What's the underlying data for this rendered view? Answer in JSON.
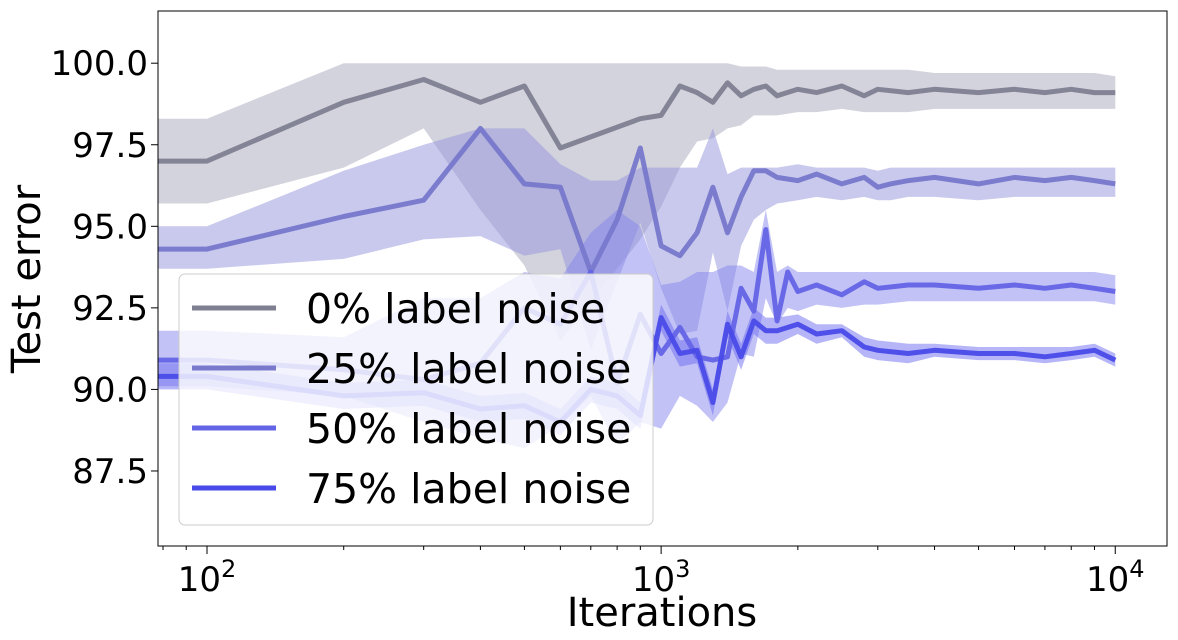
{
  "chart_data": {
    "type": "line",
    "title": "",
    "xlabel": "Iterations",
    "ylabel": "Test error",
    "x_scale": "log",
    "xlim": [
      78,
      13000
    ],
    "ylim": [
      85.2,
      101.6
    ],
    "grid": false,
    "legend_position": "lower-left",
    "x_ticks": [
      {
        "value": 100,
        "base": "10",
        "exp": "2"
      },
      {
        "value": 1000,
        "base": "10",
        "exp": "3"
      },
      {
        "value": 10000,
        "base": "10",
        "exp": "4"
      }
    ],
    "y_ticks": [
      {
        "value": 87.5,
        "label": "87.5"
      },
      {
        "value": 90.0,
        "label": "90.0"
      },
      {
        "value": 92.5,
        "label": "92.5"
      },
      {
        "value": 95.0,
        "label": "95.0"
      },
      {
        "value": 97.5,
        "label": "97.5"
      },
      {
        "value": 100.0,
        "label": "100.0"
      }
    ],
    "series": [
      {
        "name": "0% label noise",
        "color": "#7f7f92",
        "fill": "#a8a8bc",
        "x": [
          78,
          100,
          200,
          300,
          400,
          500,
          600,
          900,
          1000,
          1100,
          1200,
          1300,
          1400,
          1500,
          1600,
          1700,
          1800,
          2000,
          2200,
          2500,
          2800,
          3000,
          3500,
          4000,
          5000,
          6000,
          7000,
          8000,
          9000,
          10000
        ],
        "y": [
          97.0,
          97.0,
          98.8,
          99.5,
          98.8,
          99.3,
          97.4,
          98.3,
          98.4,
          99.3,
          99.1,
          98.8,
          99.4,
          99.0,
          99.2,
          99.3,
          99.0,
          99.2,
          99.1,
          99.3,
          99.0,
          99.2,
          99.1,
          99.2,
          99.1,
          99.2,
          99.1,
          99.2,
          99.1,
          99.1
        ],
        "upper": [
          98.3,
          98.3,
          100.0,
          100.0,
          100.0,
          100.0,
          100.0,
          100.0,
          100.0,
          100.0,
          100.0,
          100.0,
          100.0,
          99.9,
          99.9,
          99.9,
          99.8,
          99.8,
          99.8,
          99.8,
          99.8,
          99.8,
          99.8,
          99.7,
          99.7,
          99.7,
          99.7,
          99.7,
          99.7,
          99.6
        ],
        "lower": [
          95.7,
          95.7,
          96.8,
          98.0,
          95.5,
          93.8,
          91.5,
          94.6,
          95.6,
          96.8,
          97.6,
          97.7,
          98.0,
          98.1,
          98.4,
          98.4,
          98.4,
          98.5,
          98.5,
          98.6,
          98.5,
          98.5,
          98.5,
          98.6,
          98.6,
          98.6,
          98.6,
          98.6,
          98.6,
          98.6
        ]
      },
      {
        "name": "25% label noise",
        "color": "#7878cc",
        "fill": "#9494dd",
        "x": [
          78,
          100,
          200,
          300,
          400,
          500,
          600,
          700,
          800,
          900,
          1000,
          1100,
          1200,
          1300,
          1400,
          1500,
          1600,
          1700,
          1800,
          2000,
          2200,
          2500,
          2800,
          3000,
          3200,
          3500,
          4000,
          5000,
          6000,
          7000,
          8000,
          9000,
          10000
        ],
        "y": [
          94.3,
          94.3,
          95.3,
          95.8,
          98.0,
          96.3,
          96.2,
          93.6,
          95.2,
          97.4,
          94.4,
          94.1,
          94.8,
          96.2,
          94.8,
          95.9,
          96.7,
          96.7,
          96.5,
          96.4,
          96.6,
          96.3,
          96.5,
          96.2,
          96.3,
          96.4,
          96.5,
          96.3,
          96.5,
          96.4,
          96.5,
          96.4,
          96.3
        ],
        "upper": [
          95.0,
          95.0,
          96.7,
          97.5,
          98.0,
          98.0,
          96.9,
          96.4,
          96.4,
          96.8,
          96.8,
          96.8,
          96.8,
          98.0,
          96.6,
          96.8,
          96.8,
          96.8,
          96.8,
          96.9,
          96.8,
          96.8,
          96.8,
          96.7,
          96.8,
          96.8,
          96.8,
          96.8,
          96.8,
          96.8,
          96.8,
          96.8,
          96.8
        ],
        "lower": [
          93.7,
          93.7,
          94.0,
          94.6,
          94.7,
          94.1,
          94.3,
          91.2,
          93.3,
          95.1,
          93.1,
          91.7,
          91.8,
          94.2,
          92.4,
          94.4,
          95.2,
          95.5,
          95.7,
          95.8,
          95.9,
          95.8,
          95.9,
          95.8,
          95.8,
          95.9,
          95.9,
          95.8,
          95.9,
          95.9,
          95.9,
          95.9,
          95.9
        ]
      },
      {
        "name": "50% label noise",
        "color": "#6464e6",
        "fill": "#8585ee",
        "x": [
          78,
          100,
          200,
          300,
          400,
          500,
          600,
          700,
          800,
          900,
          1000,
          1100,
          1200,
          1300,
          1400,
          1500,
          1600,
          1700,
          1800,
          1900,
          2000,
          2200,
          2500,
          2800,
          3000,
          3500,
          4000,
          5000,
          6000,
          7000,
          8000,
          9000,
          10000
        ],
        "y": [
          90.9,
          90.9,
          90.6,
          90.3,
          90.8,
          92.5,
          92.0,
          93.6,
          90.2,
          92.3,
          91.1,
          91.9,
          91.0,
          90.9,
          91.0,
          93.1,
          92.4,
          94.9,
          92.1,
          93.6,
          93.0,
          93.2,
          92.9,
          93.3,
          93.1,
          93.2,
          93.2,
          93.1,
          93.2,
          93.1,
          93.2,
          93.1,
          93.0
        ],
        "upper": [
          91.8,
          91.8,
          91.6,
          92.8,
          92.8,
          93.6,
          93.4,
          94.8,
          95.5,
          95.0,
          93.2,
          93.3,
          93.6,
          93.6,
          93.8,
          93.8,
          93.6,
          95.5,
          93.6,
          93.8,
          93.6,
          93.6,
          93.6,
          93.6,
          93.6,
          93.6,
          93.6,
          93.6,
          93.6,
          93.6,
          93.6,
          93.6,
          93.5
        ],
        "lower": [
          90.1,
          90.1,
          89.8,
          89.0,
          88.5,
          88.2,
          88.9,
          89.8,
          88.3,
          89.0,
          88.8,
          89.8,
          89.5,
          89.0,
          89.6,
          91.1,
          91.0,
          92.8,
          92.0,
          92.5,
          92.4,
          92.6,
          92.5,
          92.6,
          92.6,
          92.7,
          92.7,
          92.7,
          92.7,
          92.7,
          92.7,
          92.7,
          92.6
        ]
      },
      {
        "name": "75% label noise",
        "color": "#4a4ae8",
        "fill": "#6b6bf0",
        "x": [
          78,
          100,
          200,
          300,
          400,
          500,
          600,
          700,
          800,
          900,
          1000,
          1100,
          1200,
          1300,
          1400,
          1500,
          1600,
          1700,
          1800,
          2000,
          2200,
          2500,
          2800,
          3000,
          3500,
          4000,
          5000,
          6000,
          7000,
          8000,
          9000,
          10000
        ],
        "y": [
          90.4,
          90.4,
          89.8,
          89.9,
          89.4,
          89.5,
          89.0,
          90.0,
          89.8,
          89.2,
          92.2,
          91.1,
          91.2,
          89.6,
          92.0,
          91.0,
          92.1,
          91.8,
          91.8,
          92.0,
          91.7,
          91.8,
          91.3,
          91.2,
          91.1,
          91.2,
          91.1,
          91.1,
          91.0,
          91.1,
          91.2,
          90.9
        ],
        "upper": [
          90.8,
          90.8,
          90.2,
          90.3,
          89.8,
          89.9,
          89.4,
          90.4,
          90.2,
          89.6,
          92.6,
          91.5,
          91.6,
          90.0,
          92.4,
          91.4,
          92.5,
          92.2,
          92.2,
          92.3,
          92.0,
          92.0,
          91.6,
          91.5,
          91.4,
          91.4,
          91.3,
          91.3,
          91.3,
          91.3,
          91.4,
          91.1
        ],
        "lower": [
          90.0,
          90.0,
          89.4,
          89.5,
          89.0,
          89.1,
          88.6,
          89.6,
          89.4,
          88.8,
          91.8,
          90.7,
          90.8,
          89.2,
          91.6,
          90.6,
          91.7,
          91.4,
          91.4,
          91.7,
          91.4,
          91.6,
          91.0,
          90.9,
          90.8,
          91.0,
          90.9,
          90.9,
          90.8,
          90.9,
          91.0,
          90.7
        ]
      }
    ]
  }
}
